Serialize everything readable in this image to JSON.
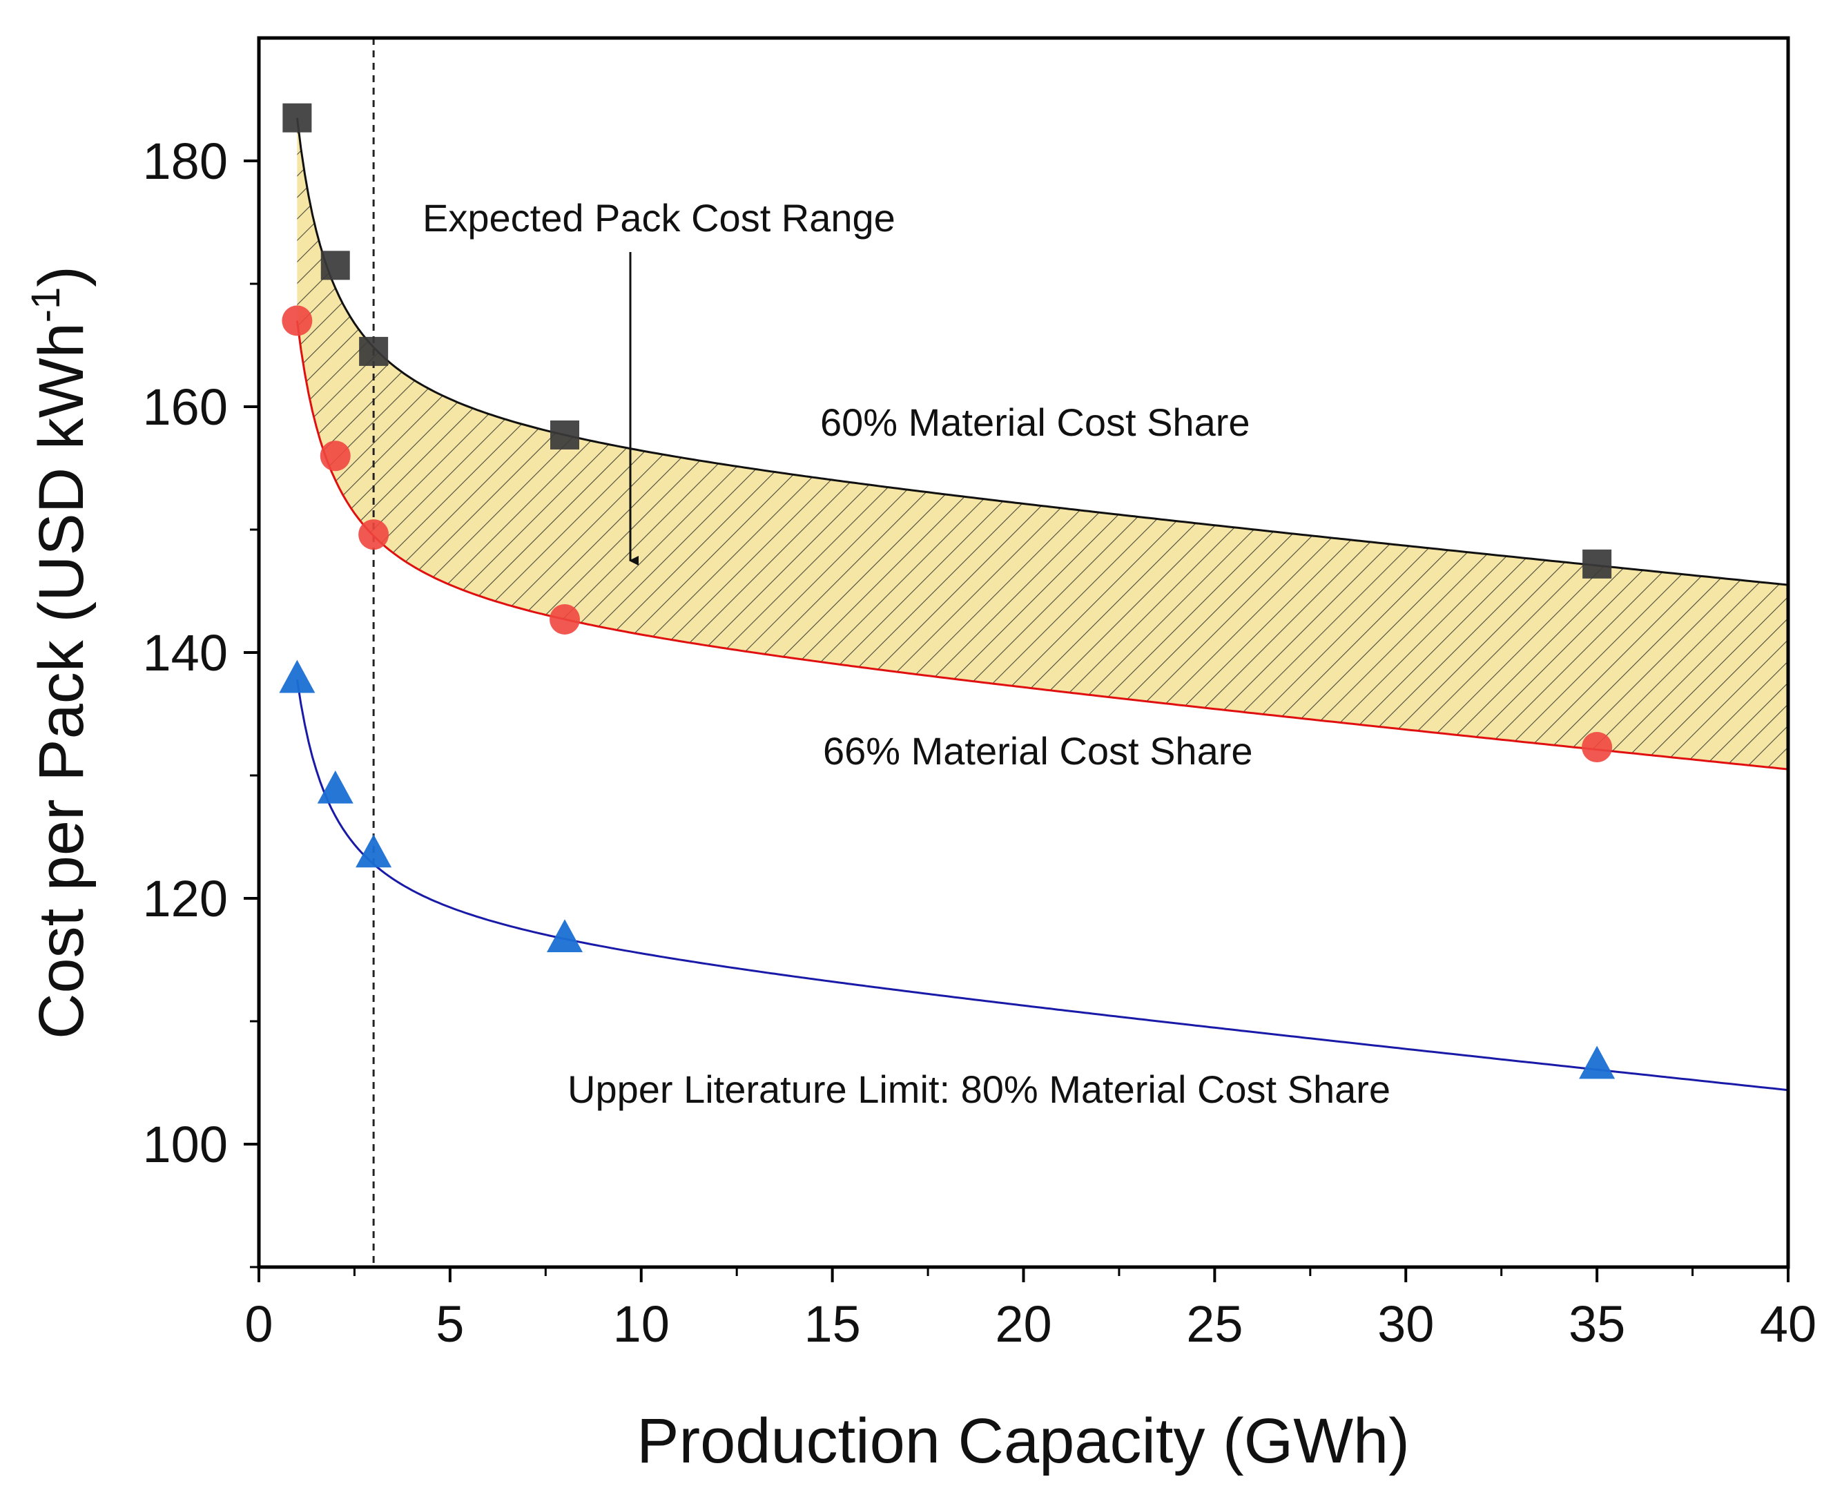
{
  "chart_data": {
    "type": "scatter",
    "title": "",
    "xlabel": "Production Capacity (GWh)",
    "ylabel_main": "Cost per Pack (USD kWh",
    "ylabel_sup": "-1",
    "ylabel_close": ")",
    "xlim": [
      0,
      40
    ],
    "ylim": [
      90,
      190
    ],
    "xticks": [
      0,
      5,
      10,
      15,
      20,
      25,
      30,
      35,
      40
    ],
    "xtick_labels": [
      "0",
      "5",
      "10",
      "15",
      "20",
      "25",
      "30",
      "35",
      "40"
    ],
    "yticks": [
      100,
      120,
      140,
      160,
      180
    ],
    "ytick_labels": [
      "100",
      "120",
      "140",
      "160",
      "180"
    ],
    "reference_line_x": 3,
    "series": [
      {
        "name": "60% Material Cost Share",
        "marker": "square",
        "color": "#3a3a3a",
        "line_color": "#111111",
        "x": [
          1,
          2,
          3,
          8,
          35
        ],
        "y": [
          183.5,
          171.5,
          164.5,
          157.7,
          147.2
        ],
        "fit_end": [
          40,
          145.5
        ]
      },
      {
        "name": "66% Material Cost Share",
        "marker": "circle",
        "color": "#f0463f",
        "line_color": "#e01010",
        "x": [
          1,
          2,
          3,
          8,
          35
        ],
        "y": [
          167,
          156,
          149.6,
          142.7,
          132.3
        ],
        "fit_end": [
          40,
          130.5
        ]
      },
      {
        "name": "Upper Literature Limit: 80% Material Cost Share",
        "marker": "triangle",
        "color": "#1a6fd4",
        "line_color": "#1a1aa8",
        "x": [
          1,
          2,
          3,
          8,
          35
        ],
        "y": [
          137.8,
          128.8,
          123.6,
          116.7,
          106.4
        ],
        "fit_end": [
          40,
          104.4
        ]
      }
    ],
    "band_fill": "#f5e6a6",
    "annotations": {
      "range_label": "Expected Pack Cost Range",
      "upper_label": "60% Material Cost Share",
      "middle_label": "66% Material Cost Share",
      "lower_label": "Upper Literature Limit: 80% Material Cost Share"
    }
  }
}
